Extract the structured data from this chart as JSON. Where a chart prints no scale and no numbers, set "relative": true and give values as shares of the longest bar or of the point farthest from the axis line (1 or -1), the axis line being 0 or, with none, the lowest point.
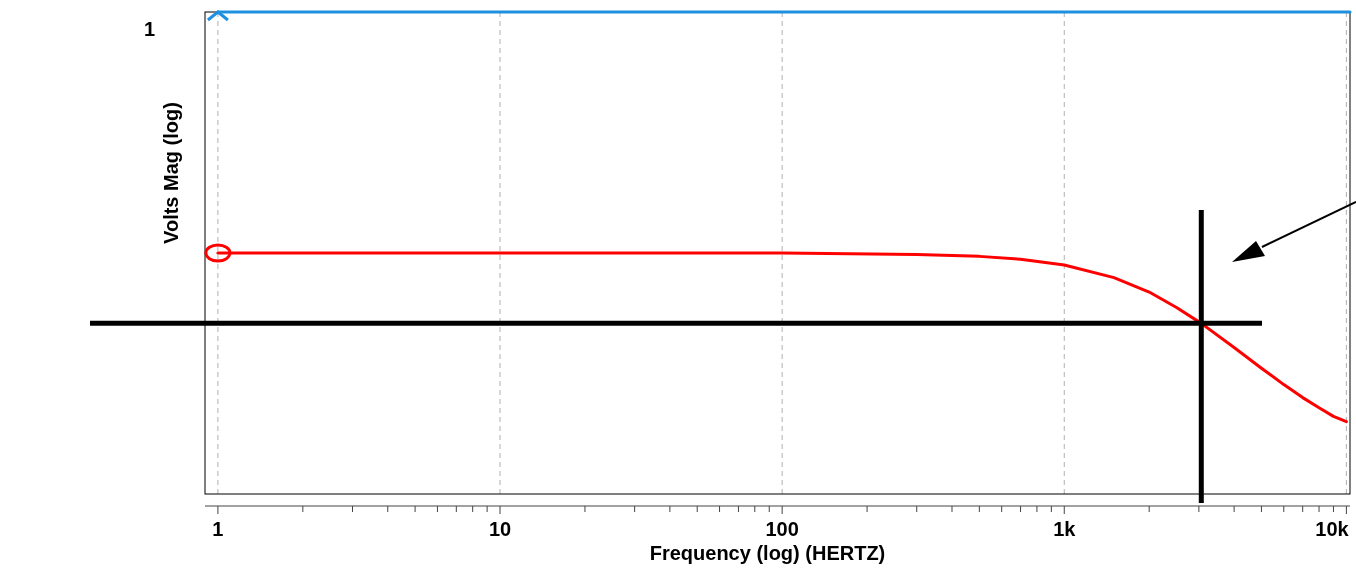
{
  "chart_data": {
    "type": "line",
    "xlabel": "Frequency (log) (HERTZ)",
    "ylabel": "Volts Mag (log)",
    "relative": true,
    "log": "x",
    "grid": "x",
    "line_style": "solid",
    "xlim": [
      0.9,
      10300
    ],
    "xticks": [
      1,
      {
        "value": 2,
        "label": null
      },
      {
        "value": 3,
        "label": null
      },
      {
        "value": 4,
        "label": null
      },
      {
        "value": 5,
        "label": null
      },
      {
        "value": 6,
        "label": null
      },
      {
        "value": 7,
        "label": null
      },
      {
        "value": 8,
        "label": null
      },
      {
        "value": 9,
        "label": null
      },
      10,
      {
        "value": 20,
        "label": null
      },
      {
        "value": 30,
        "label": null
      },
      {
        "value": 40,
        "label": null
      },
      {
        "value": 50,
        "label": null
      },
      {
        "value": 60,
        "label": null
      },
      {
        "value": 70,
        "label": null
      },
      {
        "value": 80,
        "label": null
      },
      {
        "value": 90,
        "label": null
      },
      100,
      {
        "value": 200,
        "label": null
      },
      {
        "value": 300,
        "label": null
      },
      {
        "value": 400,
        "label": null
      },
      {
        "value": 500,
        "label": null
      },
      {
        "value": 600,
        "label": null
      },
      {
        "value": 700,
        "label": null
      },
      {
        "value": 800,
        "label": null
      },
      {
        "value": 900,
        "label": null
      },
      {
        "value": 1000,
        "label": "1k"
      },
      {
        "value": 2000,
        "label": null
      },
      {
        "value": 3000,
        "label": null
      },
      {
        "value": 4000,
        "label": null
      },
      {
        "value": 5000,
        "label": null
      },
      {
        "value": 6000,
        "label": null
      },
      {
        "value": 7000,
        "label": null
      },
      {
        "value": 8000,
        "label": null
      },
      {
        "value": 9000,
        "label": null
      },
      {
        "value": 10000,
        "label": "10k"
      }
    ],
    "series": [
      {
        "color": "#1e90e0",
        "x": [
          1,
          10300
        ],
        "values": [
          1,
          1
        ]
      },
      {
        "color": "#ff0000",
        "x": [
          1,
          10,
          100,
          300,
          500,
          700,
          1000,
          1500,
          2000,
          2500,
          3060,
          4000,
          5000,
          6000,
          7000,
          8000,
          9000,
          10000
        ],
        "values": [
          0.5,
          0.5,
          0.5,
          0.497,
          0.493,
          0.487,
          0.475,
          0.449,
          0.419,
          0.387,
          0.354,
          0.304,
          0.261,
          0.227,
          0.2,
          0.179,
          0.161,
          0.15
        ]
      }
    ],
    "ref_lines": [
      {
        "axis": "x",
        "value": 3060,
        "color": "#000000"
      },
      {
        "axis": "y",
        "value": 0.354,
        "color": "#000000"
      }
    ],
    "annotations": [
      "1"
    ]
  }
}
